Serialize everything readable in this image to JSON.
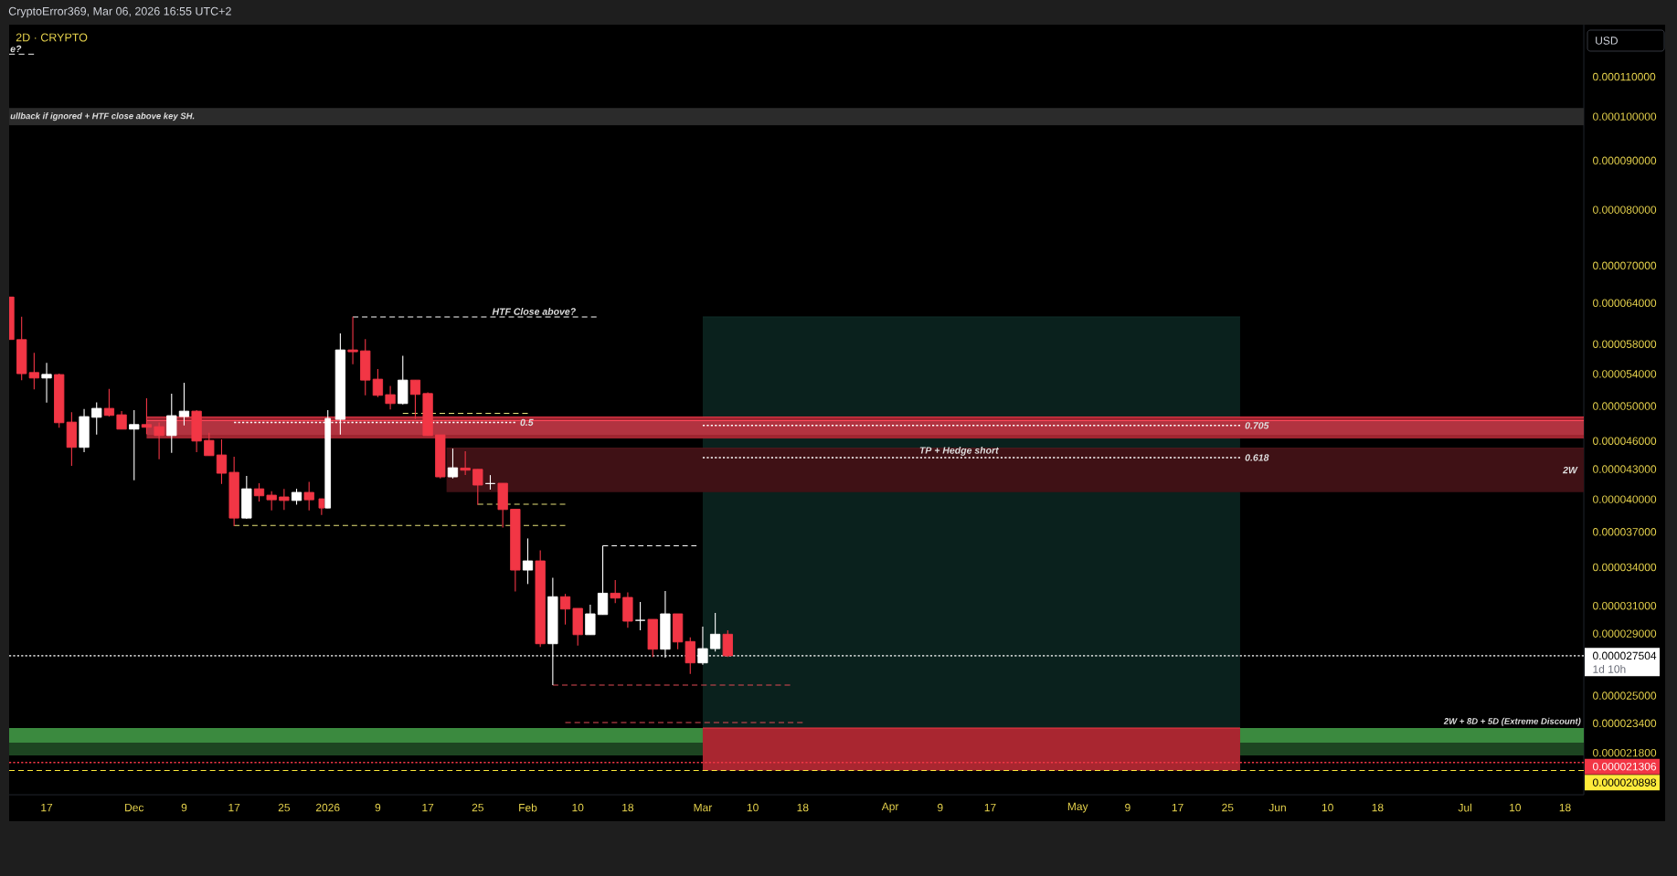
{
  "chart_data": {
    "type": "candlestick",
    "title": "2D · CRYPTO",
    "ylabel": "USD",
    "log": true,
    "xlim": [
      "2025-11-11",
      "2026-07-21"
    ],
    "ylim": [
      1.972e-05,
      0.0001246
    ],
    "xticks": [
      {
        "value": "2025-11-17",
        "label": "17"
      },
      {
        "value": "2025-12-01",
        "label": "Dec"
      },
      {
        "value": "2025-12-09",
        "label": "9"
      },
      {
        "value": "2025-12-17",
        "label": "17"
      },
      {
        "value": "2025-12-25",
        "label": "25"
      },
      {
        "value": "2026-01-01",
        "label": "2026"
      },
      {
        "value": "2026-01-09",
        "label": "9"
      },
      {
        "value": "2026-01-17",
        "label": "17"
      },
      {
        "value": "2026-01-25",
        "label": "25"
      },
      {
        "value": "2026-02-02",
        "label": "Feb"
      },
      {
        "value": "2026-02-10",
        "label": "10"
      },
      {
        "value": "2026-02-18",
        "label": "18"
      },
      {
        "value": "2026-03-02",
        "label": "Mar"
      },
      {
        "value": "2026-03-10",
        "label": "10"
      },
      {
        "value": "2026-03-18",
        "label": "18"
      },
      {
        "value": "2026-04-01",
        "label": "Apr"
      },
      {
        "value": "2026-04-09",
        "label": "9"
      },
      {
        "value": "2026-04-17",
        "label": "17"
      },
      {
        "value": "2026-05-01",
        "label": "May"
      },
      {
        "value": "2026-05-09",
        "label": "9"
      },
      {
        "value": "2026-05-17",
        "label": "17"
      },
      {
        "value": "2026-05-25",
        "label": "25"
      },
      {
        "value": "2026-06-02",
        "label": "Jun"
      },
      {
        "value": "2026-06-10",
        "label": "10"
      },
      {
        "value": "2026-06-18",
        "label": "18"
      },
      {
        "value": "2026-07-02",
        "label": "Jul"
      },
      {
        "value": "2026-07-10",
        "label": "10"
      },
      {
        "value": "2026-07-18",
        "label": "18"
      }
    ],
    "yticks": [
      {
        "value": 0.00011,
        "label": "0.000110000"
      },
      {
        "value": 0.0001,
        "label": "0.000100000"
      },
      {
        "value": 9e-05,
        "label": "0.000090000"
      },
      {
        "value": 8e-05,
        "label": "0.000080000"
      },
      {
        "value": 7e-05,
        "label": "0.000070000"
      },
      {
        "value": 6.4e-05,
        "label": "0.000064000"
      },
      {
        "value": 5.8e-05,
        "label": "0.000058000"
      },
      {
        "value": 5.4e-05,
        "label": "0.000054000"
      },
      {
        "value": 5e-05,
        "label": "0.000050000"
      },
      {
        "value": 4.6e-05,
        "label": "0.000046000"
      },
      {
        "value": 4.3e-05,
        "label": "0.000043000"
      },
      {
        "value": 4e-05,
        "label": "0.000040000"
      },
      {
        "value": 3.7e-05,
        "label": "0.000037000"
      },
      {
        "value": 3.4e-05,
        "label": "0.000034000"
      },
      {
        "value": 3.1e-05,
        "label": "0.000031000"
      },
      {
        "value": 2.9e-05,
        "label": "0.000029000"
      },
      {
        "value": 2.5e-05,
        "label": "0.000025000"
      },
      {
        "value": 2.34e-05,
        "label": "0.000023400"
      },
      {
        "value": 2.18e-05,
        "label": "0.000021800"
      }
    ],
    "x": [
      "2025-11-11",
      "2025-11-13",
      "2025-11-15",
      "2025-11-17",
      "2025-11-19",
      "2025-11-21",
      "2025-11-23",
      "2025-11-25",
      "2025-11-27",
      "2025-11-29",
      "2025-12-01",
      "2025-12-03",
      "2025-12-05",
      "2025-12-07",
      "2025-12-09",
      "2025-12-11",
      "2025-12-13",
      "2025-12-15",
      "2025-12-17",
      "2025-12-19",
      "2025-12-21",
      "2025-12-23",
      "2025-12-25",
      "2025-12-27",
      "2025-12-29",
      "2025-12-31",
      "2026-01-01",
      "2026-01-03",
      "2026-01-05",
      "2026-01-07",
      "2026-01-09",
      "2026-01-11",
      "2026-01-13",
      "2026-01-15",
      "2026-01-17",
      "2026-01-19",
      "2026-01-21",
      "2026-01-23",
      "2026-01-25",
      "2026-01-27",
      "2026-01-29",
      "2026-01-31",
      "2026-02-02",
      "2026-02-04",
      "2026-02-06",
      "2026-02-08",
      "2026-02-10",
      "2026-02-12",
      "2026-02-14",
      "2026-02-16",
      "2026-02-18",
      "2026-02-20",
      "2026-02-22",
      "2026-02-24",
      "2026-02-26",
      "2026-02-28",
      "2026-03-02",
      "2026-03-04",
      "2026-03-06"
    ],
    "ohlc": [
      [
        6.493e-05,
        6.493e-05,
        5.863e-05,
        5.863e-05
      ],
      [
        5.863e-05,
        6.192e-05,
        5.321e-05,
        5.404e-05
      ],
      [
        5.419e-05,
        5.682e-05,
        5.206e-05,
        5.348e-05
      ],
      [
        5.348e-05,
        5.547e-05,
        5.042e-05,
        5.395e-05
      ],
      [
        5.392e-05,
        5.404e-05,
        4.747e-05,
        4.805e-05
      ],
      [
        4.812e-05,
        4.929e-05,
        4.333e-05,
        4.53e-05
      ],
      [
        4.53e-05,
        4.965e-05,
        4.477e-05,
        4.876e-05
      ],
      [
        4.868e-05,
        5.046e-05,
        4.67e-05,
        4.973e-05
      ],
      [
        4.973e-05,
        5.21e-05,
        4.876e-05,
        4.89e-05
      ],
      [
        4.897e-05,
        4.94e-05,
        4.732e-05,
        4.732e-05
      ],
      [
        4.732e-05,
        4.951e-05,
        4.187e-05,
        4.784e-05
      ],
      [
        4.784e-05,
        5.094e-05,
        4.678e-05,
        4.753e-05
      ],
      [
        4.76e-05,
        4.809e-05,
        4.403e-05,
        4.66e-05
      ],
      [
        4.66e-05,
        5.15e-05,
        4.471e-05,
        4.887e-05
      ],
      [
        4.876e-05,
        5.287e-05,
        4.774e-05,
        4.94e-05
      ],
      [
        4.94e-05,
        4.951e-05,
        4.477e-05,
        4.599e-05
      ],
      [
        4.606e-05,
        4.691e-05,
        4.441e-05,
        4.441e-05
      ],
      [
        4.448e-05,
        4.617e-05,
        4.15e-05,
        4.258e-05
      ],
      [
        4.267e-05,
        4.429e-05,
        3.753e-05,
        3.825e-05
      ],
      [
        3.825e-05,
        4.23e-05,
        3.819e-05,
        4.102e-05
      ],
      [
        4.102e-05,
        4.157e-05,
        3.979e-05,
        4.034e-05
      ],
      [
        4.04e-05,
        4.078e-05,
        3.895e-05,
        3.996e-05
      ],
      [
        4.023e-05,
        4.102e-05,
        3.901e-05,
        3.99e-05
      ],
      [
        3.99e-05,
        4.102e-05,
        3.95e-05,
        4.067e-05
      ],
      [
        4.067e-05,
        4.172e-05,
        3.895e-05,
        3.996e-05
      ],
      [
        4.005e-05,
        4.005e-05,
        3.853e-05,
        3.918e-05
      ],
      [
        3.918e-05,
        4.951e-05,
        3.918e-05,
        4.855e-05
      ],
      [
        4.844e-05,
        5.949e-05,
        4.67e-05,
        5.72e-05
      ],
      [
        5.72e-05,
        6.192e-05,
        5.527e-05,
        5.695e-05
      ],
      [
        5.707e-05,
        5.871e-05,
        5.131e-05,
        5.321e-05
      ],
      [
        5.333e-05,
        5.463e-05,
        5.108e-05,
        5.131e-05
      ],
      [
        5.139e-05,
        5.249e-05,
        4.959e-05,
        5.031e-05
      ],
      [
        5.031e-05,
        5.641e-05,
        5.02e-05,
        5.321e-05
      ],
      [
        5.321e-05,
        5.321e-05,
        4.851e-05,
        5.142e-05
      ],
      [
        5.153e-05,
        5.169e-05,
        4.66e-05,
        4.66e-05
      ],
      [
        4.667e-05,
        4.667e-05,
        4.205e-05,
        4.221e-05
      ],
      [
        4.221e-05,
        4.517e-05,
        4.205e-05,
        4.314e-05
      ],
      [
        4.311e-05,
        4.487e-05,
        4.239e-05,
        4.289e-05
      ],
      [
        4.298e-05,
        4.298e-05,
        3.947e-05,
        4.139e-05
      ],
      [
        4.154e-05,
        4.239e-05,
        4.094e-05,
        4.154e-05
      ],
      [
        4.157e-05,
        4.157e-05,
        3.74e-05,
        3.904e-05
      ],
      [
        3.907e-05,
        3.907e-05,
        3.209e-05,
        3.377e-05
      ],
      [
        3.377e-05,
        3.643e-05,
        3.266e-05,
        3.452e-05
      ],
      [
        3.452e-05,
        3.541e-05,
        2.809e-05,
        2.831e-05
      ],
      [
        2.831e-05,
        3.316e-05,
        2.564e-05,
        3.168e-05
      ],
      [
        3.168e-05,
        3.19e-05,
        2.964e-05,
        3.076e-05
      ],
      [
        3.081e-05,
        3.081e-05,
        2.818e-05,
        2.893e-05
      ],
      [
        2.893e-05,
        3.108e-05,
        2.893e-05,
        3.041e-05
      ],
      [
        3.036e-05,
        3.58e-05,
        3.036e-05,
        3.195e-05
      ],
      [
        3.195e-05,
        3.297e-05,
        3.121e-05,
        3.158e-05
      ],
      [
        3.163e-05,
        3.202e-05,
        2.941e-05,
        2.988e-05
      ],
      [
        2.994e-05,
        3.128e-05,
        2.923e-05,
        2.994e-05
      ],
      [
        3.001e-05,
        3.001e-05,
        2.742e-05,
        2.794e-05
      ],
      [
        2.794e-05,
        3.211e-05,
        2.738e-05,
        3.041e-05
      ],
      [
        3.041e-05,
        3.041e-05,
        2.794e-05,
        2.843e-05
      ],
      [
        2.846e-05,
        2.874e-05,
        2.634e-05,
        2.704e-05
      ],
      [
        2.704e-05,
        2.949e-05,
        2.692e-05,
        2.798e-05
      ],
      [
        2.798e-05,
        3.047e-05,
        2.778e-05,
        2.896e-05
      ],
      [
        2.896e-05,
        2.923e-05,
        2.742e-05,
        2.7504e-05
      ]
    ],
    "colors": [
      "#f23645",
      "#f23645",
      "#f23645",
      "#ffffff",
      "#f23645",
      "#f23645",
      "#ffffff",
      "#ffffff",
      "#f23645",
      "#f23645",
      "#ffffff",
      "#f23645",
      "#f23645",
      "#ffffff",
      "#ffffff",
      "#f23645",
      "#f23645",
      "#f23645",
      "#f23645",
      "#ffffff",
      "#f23645",
      "#f23645",
      "#f23645",
      "#ffffff",
      "#f23645",
      "#f23645",
      "#ffffff",
      "#ffffff",
      "#f23645",
      "#f23645",
      "#f23645",
      "#f23645",
      "#ffffff",
      "#f23645",
      "#f23645",
      "#f23645",
      "#ffffff",
      "#f23645",
      "#f23645",
      "#ffffff",
      "#f23645",
      "#f23645",
      "#ffffff",
      "#f23645",
      "#ffffff",
      "#f23645",
      "#f23645",
      "#ffffff",
      "#ffffff",
      "#f23645",
      "#f23645",
      "#ffffff",
      "#f23645",
      "#ffffff",
      "#f23645",
      "#f23645",
      "#ffffff",
      "#ffffff",
      "#f23645"
    ],
    "bands": [
      {
        "axis": "y",
        "from": 9.79e-05,
        "to": 0.0001021,
        "label": "ullback if ignored + HTF close above key SH.",
        "color": "#2b2b2b"
      },
      {
        "axis": "y",
        "from": 2.234e-05,
        "to": 2.314e-05,
        "label": "2W + 8D + 5D (Extreme Discount)",
        "color": "#3b8a3f"
      },
      {
        "axis": "y",
        "from": 2.167e-05,
        "to": 2.234e-05,
        "color": "#1d4521"
      }
    ],
    "series": [
      {
        "type": "line",
        "x": [
          "2026-03-02",
          "2026-05-27"
        ],
        "values": [
          6.19e-05,
          6.19e-05
        ],
        "upper": [
          6.19e-05,
          6.19e-05
        ],
        "lower": [
          2.314e-05,
          2.314e-05
        ],
        "color": "#0f2f29"
      },
      {
        "type": "line",
        "x": [
          "2026-03-02",
          "2026-05-27"
        ],
        "values": [
          2.314e-05,
          2.314e-05
        ],
        "upper": [
          2.314e-05,
          2.314e-05
        ],
        "lower": [
          2.0898e-05,
          2.0898e-05
        ],
        "color": "#f23645"
      },
      {
        "type": "line",
        "x": [
          "2025-12-03",
          "2026-07-21"
        ],
        "values": [
          4.872e-05,
          4.872e-05
        ],
        "upper": [
          4.872e-05,
          4.872e-05
        ],
        "lower": [
          4.627e-05,
          4.627e-05
        ],
        "color": "#e33545"
      },
      {
        "type": "line",
        "x": [
          "2025-12-03",
          "2026-07-21"
        ],
        "values": [
          4.829e-05,
          4.829e-05
        ],
        "upper": [
          4.829e-05,
          4.829e-05
        ],
        "lower": [
          4.667e-05,
          4.667e-05
        ],
        "color": "#ff495b"
      },
      {
        "type": "line",
        "x": [
          "2026-01-20",
          "2026-07-21"
        ],
        "values": [
          4.52e-05,
          4.52e-05
        ],
        "upper": [
          4.52e-05,
          4.52e-05
        ],
        "lower": [
          4.07e-05,
          4.07e-05
        ],
        "color": "#5a181e"
      },
      {
        "type": "line",
        "x": [
          "2025-11-11",
          "2025-11-15"
        ],
        "values": [
          0.0001161,
          0.0001161
        ],
        "color": "#ffffff",
        "line_style": "dashed"
      },
      {
        "type": "line",
        "x": [
          "2026-01-05",
          "2026-02-13"
        ],
        "values": [
          6.19e-05,
          6.19e-05
        ],
        "color": "#ffffff",
        "line_style": "dashed"
      },
      {
        "type": "line",
        "x": [
          "2025-12-17",
          "2026-01-31"
        ],
        "values": [
          4.809e-05,
          4.809e-05
        ],
        "color": "#ffffff",
        "line_style": "dotted"
      },
      {
        "type": "line",
        "x": [
          "2026-03-02",
          "2026-05-27"
        ],
        "values": [
          4.773e-05,
          4.773e-05
        ],
        "color": "#ffffff",
        "line_style": "dotted"
      },
      {
        "type": "line",
        "x": [
          "2026-03-02",
          "2026-05-27"
        ],
        "values": [
          4.42e-05,
          4.42e-05
        ],
        "color": "#ffffff",
        "line_style": "dotted"
      },
      {
        "type": "line",
        "x": [
          "2026-01-13",
          "2026-02-02"
        ],
        "values": [
          4.915e-05,
          4.915e-05
        ],
        "color": "#e8e27a",
        "line_style": "dashed"
      },
      {
        "type": "line",
        "x": [
          "2026-01-25",
          "2026-02-08"
        ],
        "values": [
          3.953e-05,
          3.953e-05
        ],
        "color": "#e8e27a",
        "line_style": "dashed"
      },
      {
        "type": "line",
        "x": [
          "2025-12-17",
          "2026-02-08"
        ],
        "values": [
          3.757e-05,
          3.757e-05
        ],
        "color": "#e8e27a",
        "line_style": "dashed"
      },
      {
        "type": "line",
        "x": [
          "2026-02-14",
          "2026-03-01"
        ],
        "values": [
          3.58e-05,
          3.58e-05
        ],
        "color": "#ffffff",
        "line_style": "dashed"
      },
      {
        "type": "line",
        "x": [
          "2026-02-06",
          "2026-03-16"
        ],
        "values": [
          2.564e-05,
          2.564e-05
        ],
        "color": "#e04a55",
        "line_style": "dashed"
      },
      {
        "type": "line",
        "x": [
          "2026-02-08",
          "2026-03-18"
        ],
        "values": [
          2.344e-05,
          2.344e-05
        ],
        "color": "#e04a55",
        "line_style": "dashed"
      }
    ],
    "ref_lines": [
      {
        "axis": "y",
        "value": 2.7504e-05,
        "label": "0.000027504",
        "color": "#ffffff",
        "line_style": "dotted"
      },
      {
        "axis": "y",
        "value": 2.1306e-05,
        "label": "0.000021306",
        "color": "#f23645",
        "line_style": "dotted"
      },
      {
        "axis": "y",
        "value": 2.0898e-05,
        "label": "0.000020898",
        "color": "#ffeb3b",
        "line_style": "dashed"
      }
    ],
    "annotations": [
      "CryptoError369, Mar 06, 2026 16:55 UTC+2",
      "1d 10h",
      {
        "text": "e?",
        "x": "2025-11-11",
        "y": 0.0001161
      },
      {
        "text": "HTF Close above?",
        "x": "2026-02-03",
        "y": 6.19e-05
      },
      {
        "text": "0.5",
        "x": "2026-01-31",
        "y": 4.809e-05
      },
      {
        "text": "0.705",
        "x": "2026-05-27",
        "y": 4.773e-05
      },
      {
        "text": "0.618",
        "x": "2026-05-27",
        "y": 4.42e-05
      },
      {
        "text": "TP + Hedge short",
        "x": "2026-04-12",
        "y": 4.42e-05
      },
      {
        "text": "2W",
        "x": "2026-07-21",
        "y": 4.29e-05
      }
    ]
  }
}
